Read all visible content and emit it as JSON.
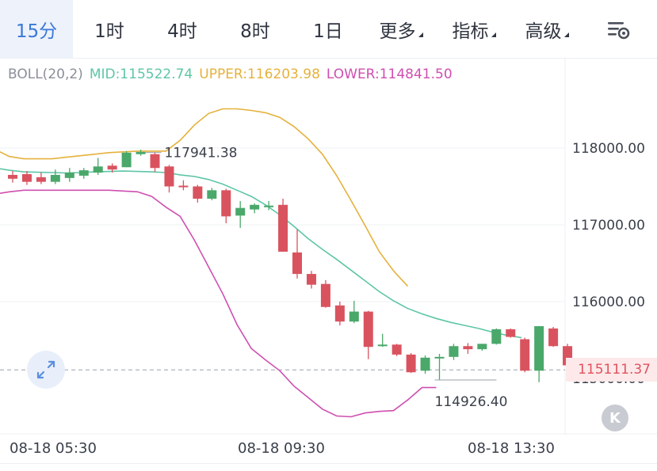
{
  "tabs": [
    {
      "label": "15分",
      "active": true
    },
    {
      "label": "1时"
    },
    {
      "label": "4时"
    },
    {
      "label": "8时"
    },
    {
      "label": "1日"
    },
    {
      "label": "更多",
      "dropdown": true
    },
    {
      "label": "指标",
      "dropdown": true
    },
    {
      "label": "高级",
      "dropdown": true
    }
  ],
  "indicator": {
    "name": "BOLL(20,2)",
    "mid": "MID:115522.74",
    "upper": "UPPER:116203.98",
    "lower": "LOWER:114841.50"
  },
  "colors": {
    "up": "#4aa86a",
    "down": "#d9535f",
    "mid": "#5ec6a6",
    "upper": "#e5b13c",
    "lower": "#cf4fb0",
    "accent": "#3b78d8"
  },
  "chart_data": {
    "type": "candlestick",
    "y_ticks": [
      "118000.00",
      "117000.00",
      "116000.00",
      "115000.00"
    ],
    "x_ticks": [
      "08-18 05:30",
      "08-18 09:30",
      "08-18 13:30"
    ],
    "current_price": "115111.37",
    "annotations": [
      "117941.38",
      "114926.40"
    ],
    "ylim": [
      114500,
      119400
    ],
    "candles": [
      {
        "o": 117650,
        "c": 117600,
        "h": 117700,
        "l": 117550
      },
      {
        "o": 117660,
        "c": 117560,
        "h": 117700,
        "l": 117520
      },
      {
        "o": 117620,
        "c": 117560,
        "h": 117680,
        "l": 117530
      },
      {
        "o": 117560,
        "c": 117650,
        "h": 117720,
        "l": 117530
      },
      {
        "o": 117610,
        "c": 117680,
        "h": 117740,
        "l": 117560
      },
      {
        "o": 117640,
        "c": 117710,
        "h": 117740,
        "l": 117600
      },
      {
        "o": 117680,
        "c": 117760,
        "h": 117870,
        "l": 117650
      },
      {
        "o": 117770,
        "c": 117720,
        "h": 117800,
        "l": 117680
      },
      {
        "o": 117750,
        "c": 117940,
        "h": 117960,
        "l": 117750
      },
      {
        "o": 117920,
        "c": 117950,
        "h": 117980,
        "l": 117900
      },
      {
        "o": 117920,
        "c": 117740,
        "h": 117940,
        "l": 117690
      },
      {
        "o": 117760,
        "c": 117500,
        "h": 117780,
        "l": 117420
      },
      {
        "o": 117510,
        "c": 117500,
        "h": 117580,
        "l": 117450
      },
      {
        "o": 117500,
        "c": 117340,
        "h": 117520,
        "l": 117290
      },
      {
        "o": 117340,
        "c": 117450,
        "h": 117480,
        "l": 117320
      },
      {
        "o": 117450,
        "c": 117110,
        "h": 117470,
        "l": 117020
      },
      {
        "o": 117120,
        "c": 117220,
        "h": 117310,
        "l": 116960
      },
      {
        "o": 117200,
        "c": 117260,
        "h": 117280,
        "l": 117150
      },
      {
        "o": 117230,
        "c": 117250,
        "h": 117310,
        "l": 117190
      },
      {
        "o": 117260,
        "c": 116650,
        "h": 117340,
        "l": 116650
      },
      {
        "o": 116640,
        "c": 116360,
        "h": 116940,
        "l": 116300
      },
      {
        "o": 116360,
        "c": 116220,
        "h": 116400,
        "l": 116170
      },
      {
        "o": 116230,
        "c": 115930,
        "h": 116280,
        "l": 115920
      },
      {
        "o": 115950,
        "c": 115740,
        "h": 116000,
        "l": 115690
      },
      {
        "o": 115740,
        "c": 115870,
        "h": 116010,
        "l": 115720
      },
      {
        "o": 115870,
        "c": 115410,
        "h": 115880,
        "l": 115250
      },
      {
        "o": 115420,
        "c": 115440,
        "h": 115580,
        "l": 115410
      },
      {
        "o": 115440,
        "c": 115310,
        "h": 115450,
        "l": 115290
      },
      {
        "o": 115310,
        "c": 115080,
        "h": 115330,
        "l": 115070
      },
      {
        "o": 115100,
        "c": 115270,
        "h": 115300,
        "l": 115060
      },
      {
        "o": 115270,
        "c": 115280,
        "h": 115320,
        "l": 114980
      },
      {
        "o": 115280,
        "c": 115420,
        "h": 115450,
        "l": 115240
      },
      {
        "o": 115420,
        "c": 115380,
        "h": 115460,
        "l": 115320
      },
      {
        "o": 115380,
        "c": 115450,
        "h": 115450,
        "l": 115360
      },
      {
        "o": 115450,
        "c": 115640,
        "h": 115650,
        "l": 115440
      },
      {
        "o": 115640,
        "c": 115540,
        "h": 115650,
        "l": 115530
      },
      {
        "o": 115510,
        "c": 115100,
        "h": 115530,
        "l": 115080
      },
      {
        "o": 115100,
        "c": 115680,
        "h": 115680,
        "l": 114950
      },
      {
        "o": 115650,
        "c": 115420,
        "h": 115670,
        "l": 115410
      },
      {
        "o": 115420,
        "c": 115170,
        "h": 115450,
        "l": 115010
      }
    ],
    "mid_line": [
      117740,
      117710,
      117690,
      117685,
      117680,
      117675,
      117680,
      117690,
      117695,
      117700,
      117695,
      117690,
      117680,
      117650,
      117630,
      117590,
      117530,
      117450,
      117370,
      117260,
      117130,
      116980,
      116820,
      116680,
      116550,
      116410,
      116270,
      116130,
      116010,
      115910,
      115840,
      115780,
      115730,
      115690,
      115650,
      115600,
      115560,
      115530
    ],
    "upper_line": [
      117980,
      117890,
      117860,
      117860,
      117860,
      117880,
      117900,
      117920,
      117940,
      117950,
      117960,
      117960,
      117960,
      118100,
      118300,
      118450,
      118510,
      118510,
      118490,
      118460,
      118400,
      118280,
      118120,
      117920,
      117640,
      117320,
      116990,
      116650,
      116400,
      116200
    ],
    "lower_line": [
      117400,
      117430,
      117450,
      117450,
      117450,
      117450,
      117450,
      117450,
      117450,
      117440,
      117430,
      117370,
      117230,
      117110,
      116800,
      116450,
      116100,
      115700,
      115390,
      115240,
      115100,
      114900,
      114750,
      114600,
      114510,
      114500,
      114550,
      114570,
      114580,
      114720,
      114880,
      114880
    ],
    "upper_x_count": 30,
    "lower_x_count": 32
  }
}
